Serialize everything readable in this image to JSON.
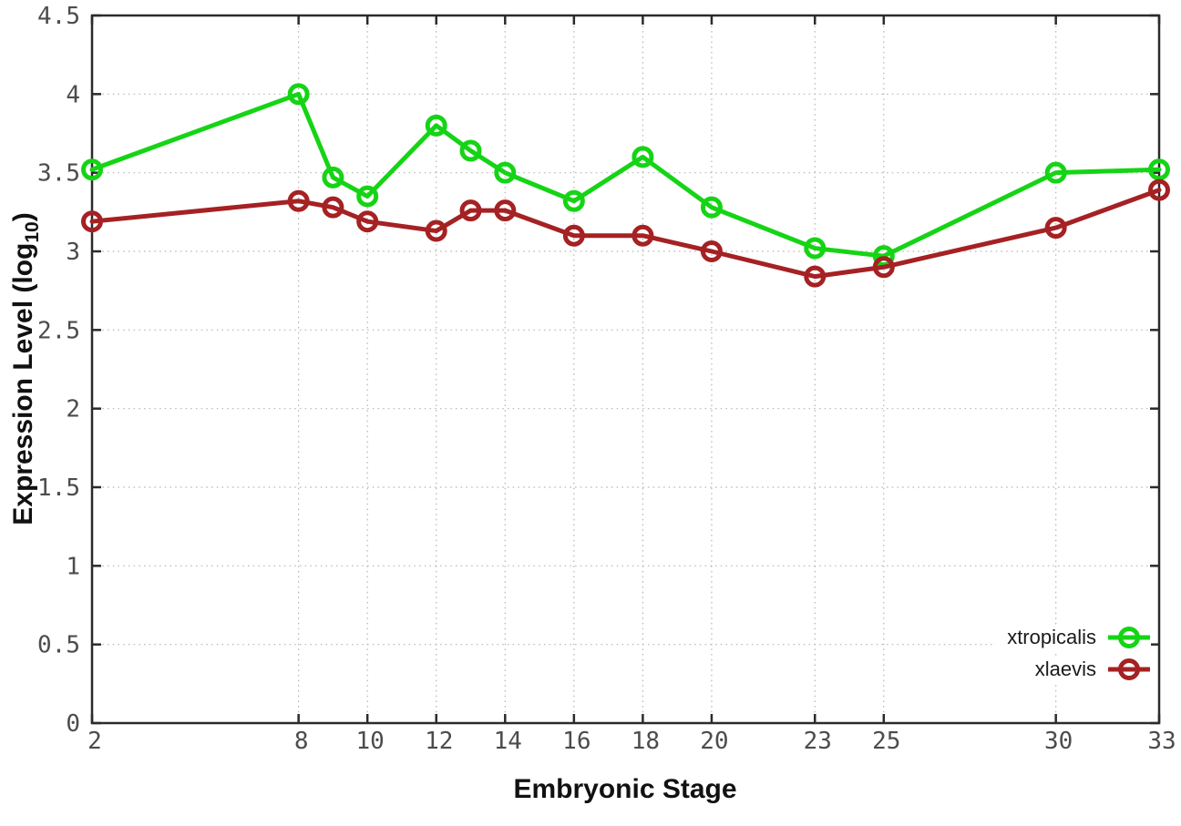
{
  "chart_data": {
    "type": "line",
    "xlabel": "Embryonic Stage",
    "ylabel_main": "Expression Level (log",
    "ylabel_sub": "10",
    "ylabel_close": ")",
    "x": [
      2,
      8,
      9,
      10,
      12,
      13,
      14,
      16,
      18,
      20,
      23,
      25,
      30,
      33
    ],
    "xlim": [
      2,
      33
    ],
    "ylim": [
      0,
      4.5
    ],
    "x_ticks": [
      {
        "value": 2,
        "label": "2"
      },
      {
        "value": 8,
        "label": "8"
      },
      {
        "value": 10,
        "label": "10"
      },
      {
        "value": 12,
        "label": "12"
      },
      {
        "value": 14,
        "label": "14"
      },
      {
        "value": 16,
        "label": "16"
      },
      {
        "value": 18,
        "label": "18"
      },
      {
        "value": 20,
        "label": "20"
      },
      {
        "value": 23,
        "label": "23"
      },
      {
        "value": 25,
        "label": "25"
      },
      {
        "value": 30,
        "label": "30"
      },
      {
        "value": 33,
        "label": "33"
      }
    ],
    "y_ticks": [
      {
        "value": 0,
        "label": "0"
      },
      {
        "value": 0.5,
        "label": "0.5"
      },
      {
        "value": 1,
        "label": "1"
      },
      {
        "value": 1.5,
        "label": "1.5"
      },
      {
        "value": 2,
        "label": "2"
      },
      {
        "value": 2.5,
        "label": "2.5"
      },
      {
        "value": 3,
        "label": "3"
      },
      {
        "value": 3.5,
        "label": "3.5"
      },
      {
        "value": 4,
        "label": "4"
      },
      {
        "value": 4.5,
        "label": "4.5"
      }
    ],
    "grid": true,
    "legend_position": "bottom-right",
    "series": [
      {
        "name": "xtropicalis",
        "color": "#15d415",
        "marker": "open-circle",
        "values": [
          3.52,
          4.0,
          3.47,
          3.35,
          3.8,
          3.64,
          3.5,
          3.32,
          3.6,
          3.28,
          3.02,
          2.97,
          3.5,
          3.52
        ]
      },
      {
        "name": "xlaevis",
        "color": "#a52123",
        "marker": "open-circle",
        "values": [
          3.19,
          3.32,
          3.28,
          3.19,
          3.13,
          3.26,
          3.26,
          3.1,
          3.1,
          3.0,
          2.84,
          2.9,
          3.15,
          3.39
        ]
      }
    ],
    "style": {
      "grid_color": "#b3b3b3",
      "axis_color": "#2b2b2b",
      "tick_label_color": "#4c4c4c",
      "background": "#ffffff"
    }
  }
}
